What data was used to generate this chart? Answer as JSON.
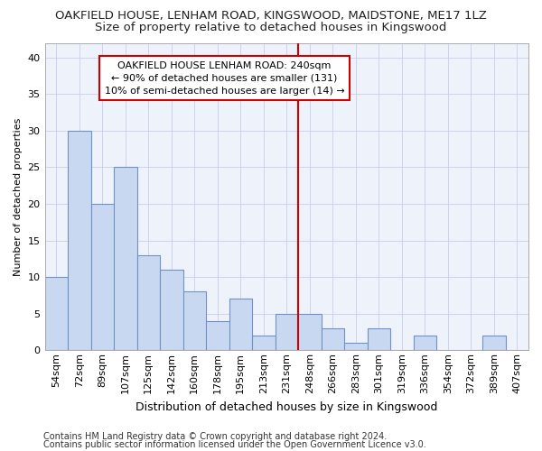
{
  "title1": "OAKFIELD HOUSE, LENHAM ROAD, KINGSWOOD, MAIDSTONE, ME17 1LZ",
  "title2": "Size of property relative to detached houses in Kingswood",
  "xlabel": "Distribution of detached houses by size in Kingswood",
  "ylabel": "Number of detached properties",
  "categories": [
    "54sqm",
    "72sqm",
    "89sqm",
    "107sqm",
    "125sqm",
    "142sqm",
    "160sqm",
    "178sqm",
    "195sqm",
    "213sqm",
    "231sqm",
    "248sqm",
    "266sqm",
    "283sqm",
    "301sqm",
    "319sqm",
    "336sqm",
    "354sqm",
    "372sqm",
    "389sqm",
    "407sqm"
  ],
  "values": [
    10,
    30,
    20,
    25,
    13,
    11,
    8,
    4,
    7,
    2,
    5,
    5,
    3,
    1,
    3,
    0,
    2,
    0,
    0,
    2,
    0
  ],
  "bar_color": "#c8d8f0",
  "bar_edge_color": "#7090c8",
  "vline_color": "#cc0000",
  "annotation_line1": "OAKFIELD HOUSE LENHAM ROAD: 240sqm",
  "annotation_line2": "← 90% of detached houses are smaller (131)",
  "annotation_line3": "10% of semi-detached houses are larger (14) →",
  "annotation_box_color": "#ffffff",
  "annotation_box_edge": "#cc0000",
  "ylim": [
    0,
    42
  ],
  "yticks": [
    0,
    5,
    10,
    15,
    20,
    25,
    30,
    35,
    40
  ],
  "footer1": "Contains HM Land Registry data © Crown copyright and database right 2024.",
  "footer2": "Contains public sector information licensed under the Open Government Licence v3.0.",
  "background_color": "#eef2fb",
  "grid_color": "#c8cfe8",
  "title1_fontsize": 9.5,
  "title2_fontsize": 9.5,
  "xlabel_fontsize": 9,
  "ylabel_fontsize": 8,
  "tick_fontsize": 8,
  "footer_fontsize": 7,
  "annot_fontsize": 8
}
